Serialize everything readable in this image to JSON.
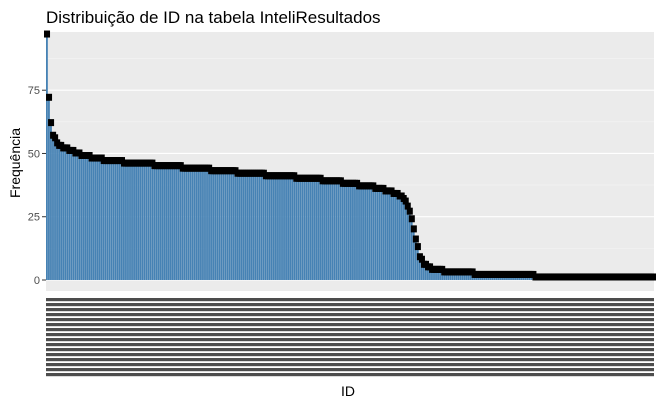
{
  "chart_data": {
    "type": "bar",
    "title": "Distribuição de ID na tabela InteliResultados",
    "xlabel": "ID",
    "ylabel": "Frequência",
    "ylim": [
      0,
      98
    ],
    "y_ticks": [
      0,
      25,
      50,
      75
    ],
    "bar_color": "#4682b4",
    "label_color": "#000000",
    "panel_color": "#ebebeb",
    "grid": true,
    "legend": "none",
    "bar_count": 300,
    "x_tick_labels_note": "x tick labels overlap and are illegible",
    "curve_points": [
      [
        0,
        97
      ],
      [
        1,
        72
      ],
      [
        2,
        62
      ],
      [
        3,
        57
      ],
      [
        5,
        54
      ],
      [
        8,
        52
      ],
      [
        12,
        51
      ],
      [
        18,
        49
      ],
      [
        30,
        47
      ],
      [
        60,
        45
      ],
      [
        100,
        42
      ],
      [
        130,
        40
      ],
      [
        150,
        38
      ],
      [
        165,
        36
      ],
      [
        172,
        34
      ],
      [
        176,
        32
      ],
      [
        178,
        29
      ],
      [
        180,
        24
      ],
      [
        182,
        16
      ],
      [
        184,
        9
      ],
      [
        186,
        6
      ],
      [
        190,
        4
      ],
      [
        200,
        3
      ],
      [
        220,
        2
      ],
      [
        240,
        2
      ],
      [
        241,
        1
      ],
      [
        300,
        1
      ]
    ]
  }
}
